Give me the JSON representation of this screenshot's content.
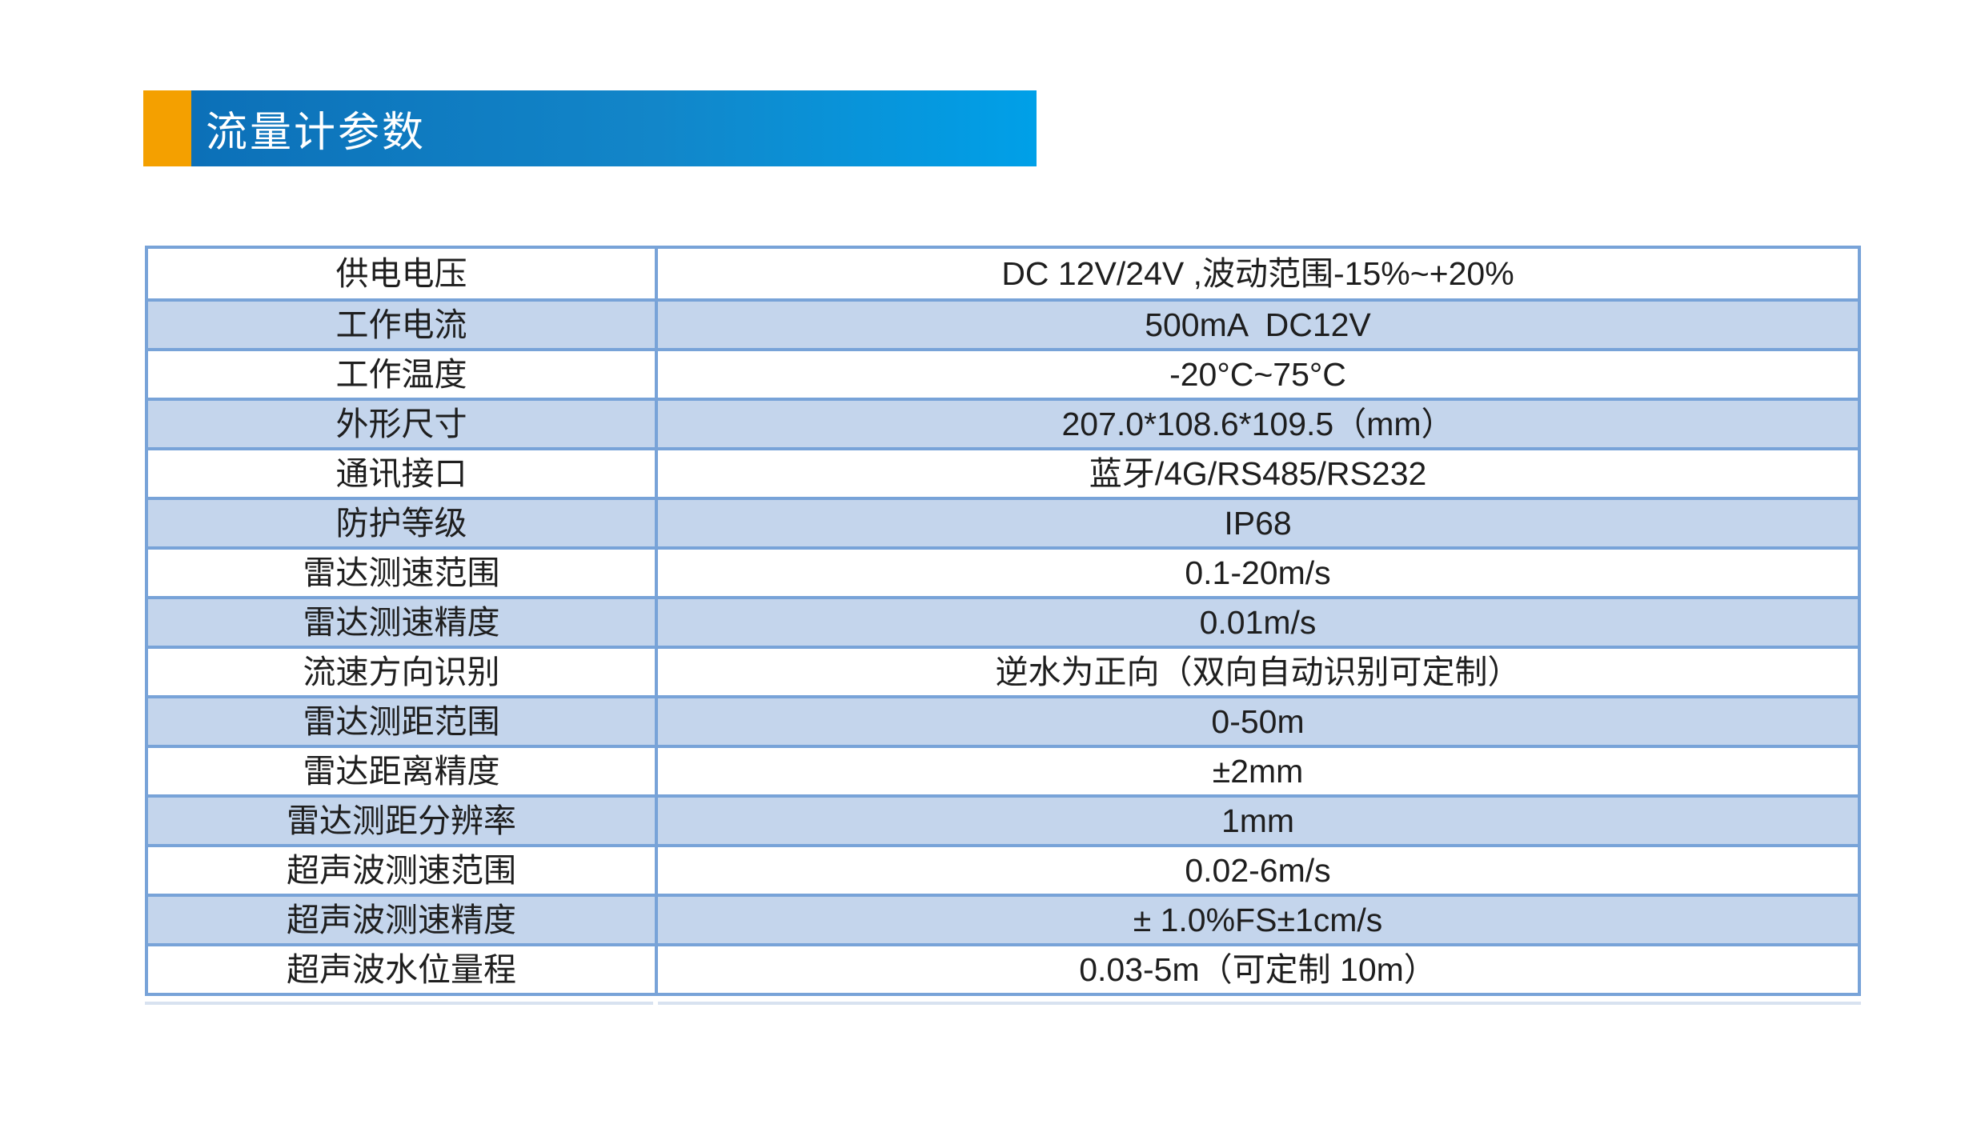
{
  "header": {
    "title": "流量计参数",
    "accent_color": "#F4A000",
    "gradient_start": "#0C70B8",
    "gradient_end": "#00A0E8",
    "title_color": "#FFFFFF"
  },
  "table": {
    "border_color": "#78A3D8",
    "zebra_row_color": "#C4D5EC",
    "text_color": "#1E1E1E",
    "rows": [
      {
        "label": "供电电压",
        "value": "DC 12V/24V ,波动范围-15%~+20%"
      },
      {
        "label": "工作电流",
        "value": "500mA  DC12V"
      },
      {
        "label": "工作温度",
        "value": "-20°C~75°C"
      },
      {
        "label": "外形尺寸",
        "value": "207.0*108.6*109.5（mm）"
      },
      {
        "label": "通讯接口",
        "value": "蓝牙/4G/RS485/RS232"
      },
      {
        "label": "防护等级",
        "value": "IP68"
      },
      {
        "label": "雷达测速范围",
        "value": "0.1-20m/s"
      },
      {
        "label": "雷达测速精度",
        "value": "0.01m/s"
      },
      {
        "label": "流速方向识别",
        "value": "逆水为正向（双向自动识别可定制）"
      },
      {
        "label": "雷达测距范围",
        "value": "0-50m"
      },
      {
        "label": "雷达距离精度",
        "value": "±2mm"
      },
      {
        "label": "雷达测距分辨率",
        "value": "1mm"
      },
      {
        "label": "超声波测速范围",
        "value": "0.02-6m/s"
      },
      {
        "label": "超声波测速精度",
        "value": "± 1.0%FS±1cm/s"
      },
      {
        "label": "超声波水位量程",
        "value": "0.03-5m（可定制 10m）"
      }
    ]
  }
}
